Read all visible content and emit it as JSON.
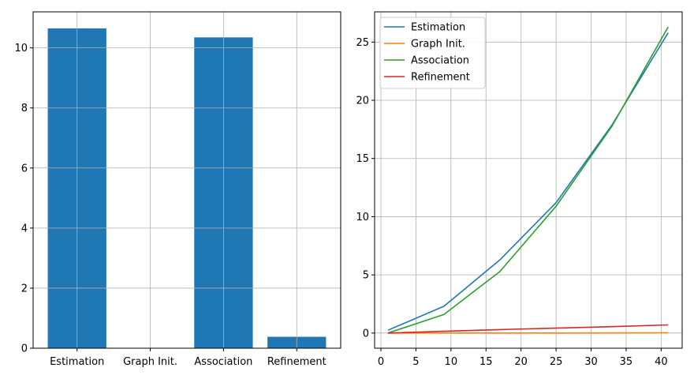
{
  "chart_data": [
    {
      "type": "bar",
      "categories": [
        "Estimation",
        "Graph Init.",
        "Association",
        "Refinement"
      ],
      "values": [
        10.65,
        0.0,
        10.35,
        0.38
      ],
      "color": "#1f77b4",
      "ylim": [
        0,
        11.2
      ],
      "yticks": [
        0,
        2,
        4,
        6,
        8,
        10
      ],
      "grid": true
    },
    {
      "type": "line",
      "xlim": [
        -0.9,
        43.0
      ],
      "ylim": [
        -1.3,
        27.6
      ],
      "xticks": [
        0,
        5,
        10,
        15,
        20,
        25,
        30,
        35,
        40
      ],
      "yticks": [
        0,
        5,
        10,
        15,
        20,
        25
      ],
      "grid": true,
      "legend": "top-left",
      "series": [
        {
          "name": "Estimation",
          "color": "#1f77b4",
          "x": [
            1,
            9,
            17,
            25,
            33,
            41
          ],
          "y": [
            0.25,
            2.3,
            6.3,
            11.2,
            17.9,
            25.8
          ]
        },
        {
          "name": "Graph Init.",
          "color": "#ff7f0e",
          "x": [
            1,
            9,
            17,
            25,
            33,
            41
          ],
          "y": [
            0.0,
            0.0,
            0.0,
            0.0,
            0.01,
            0.02
          ]
        },
        {
          "name": "Association",
          "color": "#2ca02c",
          "x": [
            1,
            9,
            17,
            25,
            33,
            41
          ],
          "y": [
            0.0,
            1.6,
            5.3,
            10.9,
            17.8,
            26.3
          ]
        },
        {
          "name": "Refinement",
          "color": "#d62728",
          "x": [
            1,
            9,
            17,
            25,
            33,
            41
          ],
          "y": [
            0.0,
            0.15,
            0.3,
            0.42,
            0.55,
            0.7
          ]
        }
      ]
    }
  ]
}
